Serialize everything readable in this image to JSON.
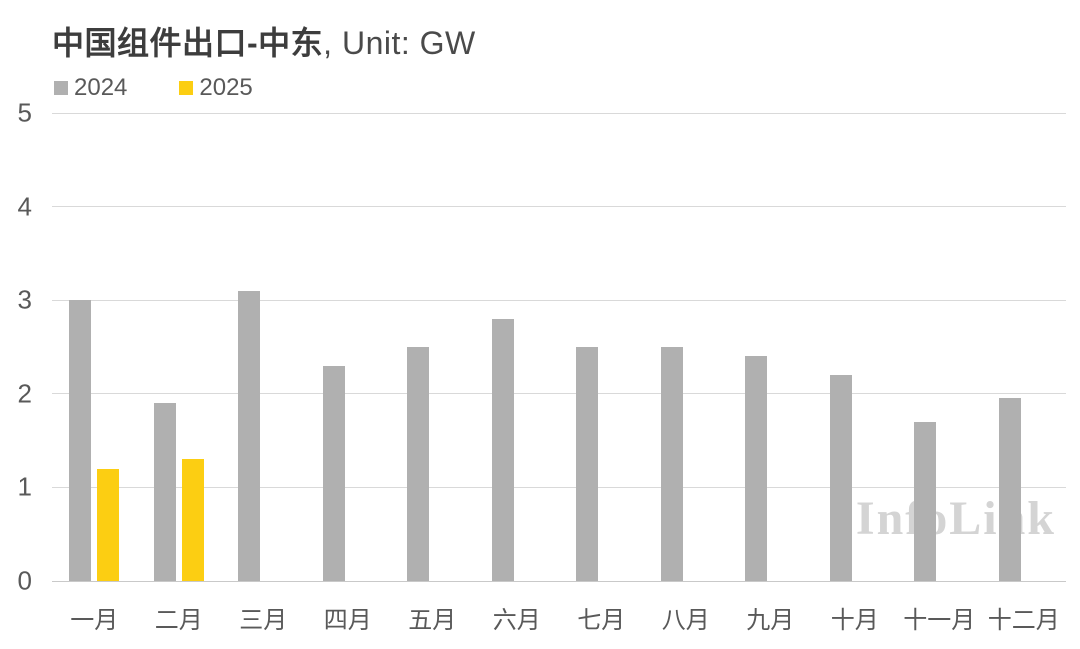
{
  "title": {
    "main": "中国组件出口-中东",
    "suffix": ", Unit: GW"
  },
  "watermark": "InfoLink",
  "colors": {
    "bar_2024": "#b0b0b0",
    "bar_2025": "#fcce12",
    "gridline": "#d9d9d9",
    "axis_text": "#595959",
    "title_text": "#3d3d3d",
    "watermark_text": "#d4d4d4"
  },
  "legend": [
    {
      "label": "2024",
      "color": "#b0b0b0"
    },
    {
      "label": "2025",
      "color": "#fcce12"
    }
  ],
  "chart_data": {
    "type": "bar",
    "title": "中国组件出口-中东, Unit: GW",
    "unit": "GW",
    "categories": [
      "一月",
      "二月",
      "三月",
      "四月",
      "五月",
      "六月",
      "七月",
      "八月",
      "九月",
      "十月",
      "十一月",
      "十二月"
    ],
    "series": [
      {
        "name": "2024",
        "color": "#b0b0b0",
        "values": [
          3.0,
          1.9,
          3.1,
          2.3,
          2.5,
          2.8,
          2.5,
          2.5,
          2.4,
          2.2,
          1.7,
          1.95
        ]
      },
      {
        "name": "2025",
        "color": "#fcce12",
        "values": [
          1.2,
          1.3,
          null,
          null,
          null,
          null,
          null,
          null,
          null,
          null,
          null,
          null
        ]
      }
    ],
    "xlabel": "",
    "ylabel": "",
    "ylim": [
      0,
      5
    ],
    "yticks": [
      0,
      1,
      2,
      3,
      4,
      5
    ],
    "grid": true,
    "legend_position": "top-left"
  }
}
